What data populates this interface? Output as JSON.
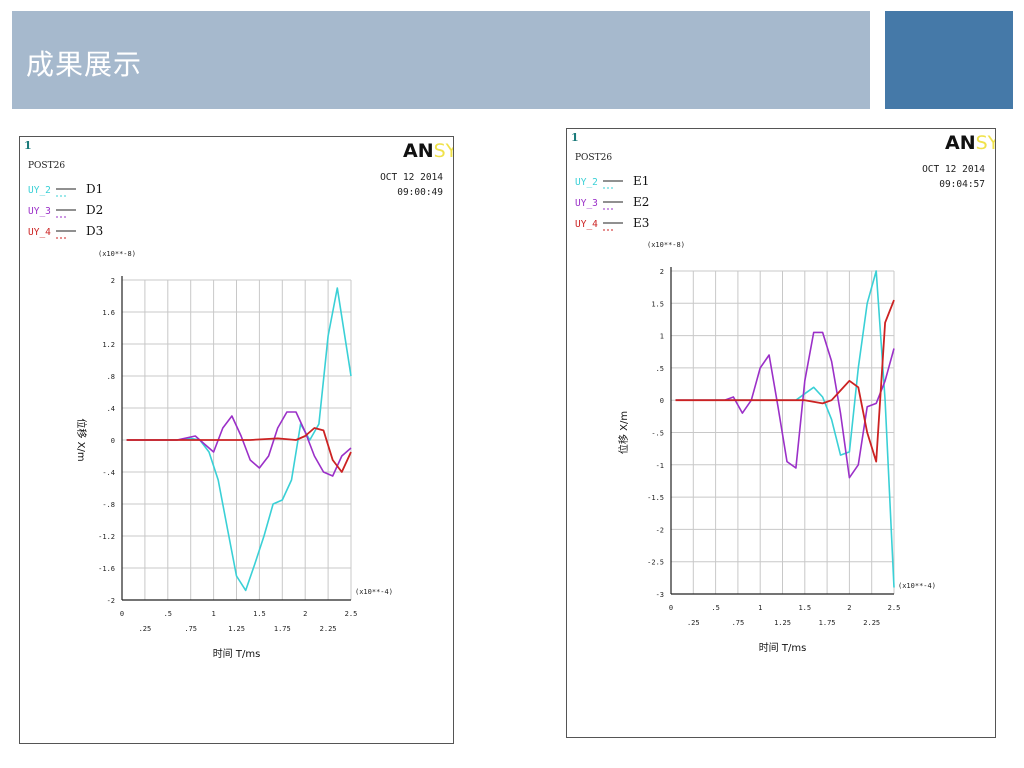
{
  "slide": {
    "title": "成果展示",
    "banner_color": "#a6b9cd",
    "accent_color": "#4579a8"
  },
  "charts": [
    {
      "window_number": "1",
      "post_label": "POST26",
      "logo_text": "ANSYS",
      "date": "OCT 12 2014",
      "time": "09:00:49",
      "multiplier_y": "(x10**-8)",
      "multiplier_x": "(x10**-4)",
      "ylabel": "位移 X/m",
      "xlabel": "时间 T/ms",
      "legend": [
        {
          "var": "UY_2",
          "label": "D1",
          "color": "#3ad0d6"
        },
        {
          "var": "UY_3",
          "label": "D2",
          "color": "#9b30c8"
        },
        {
          "var": "UY_4",
          "label": "D3",
          "color": "#cc2222"
        }
      ]
    },
    {
      "window_number": "1",
      "post_label": "POST26",
      "logo_text": "ANSYS",
      "date": "OCT 12 2014",
      "time": "09:04:57",
      "multiplier_y": "(x10**-8)",
      "multiplier_x": "(x10**-4)",
      "ylabel": "位移 X/m",
      "xlabel": "时间 T/ms",
      "legend": [
        {
          "var": "UY_2",
          "label": "E1",
          "color": "#3ad0d6"
        },
        {
          "var": "UY_3",
          "label": "E2",
          "color": "#9b30c8"
        },
        {
          "var": "UY_4",
          "label": "E3",
          "color": "#cc2222"
        }
      ]
    }
  ],
  "chart_data": [
    {
      "type": "line",
      "xlabel": "时间 T/ms",
      "ylabel": "位移 X/m",
      "xlim": [
        0,
        2.5
      ],
      "ylim": [
        -2,
        2
      ],
      "x_ticks_upper": [
        "0",
        ".5",
        "1",
        "1.5",
        "2",
        "2.5"
      ],
      "x_ticks_lower": [
        ".25",
        ".75",
        "1.25",
        "1.75",
        "2.25"
      ],
      "y_ticks": [
        "-2",
        "-1.6",
        "-1.2",
        "-.8",
        "-.4",
        "0",
        ".4",
        ".8",
        "1.2",
        "1.6",
        "2"
      ],
      "grid": true,
      "series": [
        {
          "name": "UY_2",
          "color": "#3ad0d6",
          "x": [
            0.05,
            0.6,
            0.75,
            0.85,
            0.95,
            1.05,
            1.15,
            1.25,
            1.35,
            1.45,
            1.55,
            1.65,
            1.75,
            1.85,
            1.95,
            2.05,
            2.15,
            2.25,
            2.35,
            2.5
          ],
          "y": [
            0,
            0,
            0.02,
            0,
            -0.15,
            -0.5,
            -1.1,
            -1.7,
            -1.88,
            -1.55,
            -1.2,
            -0.8,
            -0.75,
            -0.5,
            0.2,
            0.0,
            0.2,
            1.3,
            1.9,
            0.8
          ]
        },
        {
          "name": "UY_3",
          "color": "#9b30c8",
          "x": [
            0.05,
            0.6,
            0.8,
            0.9,
            1.0,
            1.1,
            1.2,
            1.3,
            1.4,
            1.5,
            1.6,
            1.7,
            1.8,
            1.9,
            2.0,
            2.1,
            2.2,
            2.3,
            2.4,
            2.5
          ],
          "y": [
            0,
            0,
            0.05,
            -0.05,
            -0.15,
            0.15,
            0.3,
            0.05,
            -0.25,
            -0.35,
            -0.2,
            0.15,
            0.35,
            0.35,
            0.1,
            -0.2,
            -0.4,
            -0.45,
            -0.2,
            -0.1
          ]
        },
        {
          "name": "UY_4",
          "color": "#cc2222",
          "x": [
            0.05,
            0.6,
            1.0,
            1.4,
            1.7,
            1.9,
            2.0,
            2.1,
            2.2,
            2.3,
            2.4,
            2.5
          ],
          "y": [
            0,
            0,
            0,
            0,
            0.02,
            0,
            0.05,
            0.15,
            0.12,
            -0.25,
            -0.4,
            -0.15
          ]
        }
      ]
    },
    {
      "type": "line",
      "xlabel": "时间 T/ms",
      "ylabel": "位移 X/m",
      "xlim": [
        0,
        2.5
      ],
      "ylim": [
        -3,
        2
      ],
      "x_ticks_upper": [
        "0",
        ".5",
        "1",
        "1.5",
        "2",
        "2.5"
      ],
      "x_ticks_lower": [
        ".25",
        ".75",
        "1.25",
        "1.75",
        "2.25"
      ],
      "y_ticks": [
        "-3",
        "-2.5",
        "-2",
        "-1.5",
        "-1",
        "-.5",
        "0",
        ".5",
        "1",
        "1.5",
        "2"
      ],
      "grid": true,
      "series": [
        {
          "name": "UY_2",
          "color": "#3ad0d6",
          "x": [
            0.05,
            1.0,
            1.4,
            1.5,
            1.6,
            1.7,
            1.8,
            1.9,
            2.0,
            2.1,
            2.2,
            2.3,
            2.4,
            2.5
          ],
          "y": [
            0,
            0,
            0,
            0.1,
            0.2,
            0.05,
            -0.3,
            -0.85,
            -0.8,
            0.5,
            1.5,
            2.0,
            0.0,
            -2.9
          ]
        },
        {
          "name": "UY_3",
          "color": "#9b30c8",
          "x": [
            0.05,
            0.6,
            0.7,
            0.8,
            0.9,
            1.0,
            1.1,
            1.2,
            1.3,
            1.4,
            1.5,
            1.6,
            1.7,
            1.8,
            1.9,
            2.0,
            2.1,
            2.2,
            2.3,
            2.4,
            2.5
          ],
          "y": [
            0,
            0,
            0.05,
            -0.2,
            0.0,
            0.5,
            0.7,
            -0.1,
            -0.95,
            -1.05,
            0.3,
            1.05,
            1.05,
            0.6,
            -0.2,
            -1.2,
            -1.0,
            -0.1,
            -0.05,
            0.3,
            0.8
          ]
        },
        {
          "name": "UY_4",
          "color": "#cc2222",
          "x": [
            0.05,
            0.6,
            1.0,
            1.5,
            1.7,
            1.8,
            1.9,
            2.0,
            2.1,
            2.2,
            2.3,
            2.4,
            2.5
          ],
          "y": [
            0,
            0,
            0,
            0,
            -0.05,
            0.0,
            0.15,
            0.3,
            0.2,
            -0.5,
            -0.95,
            1.2,
            1.55
          ]
        }
      ]
    }
  ]
}
